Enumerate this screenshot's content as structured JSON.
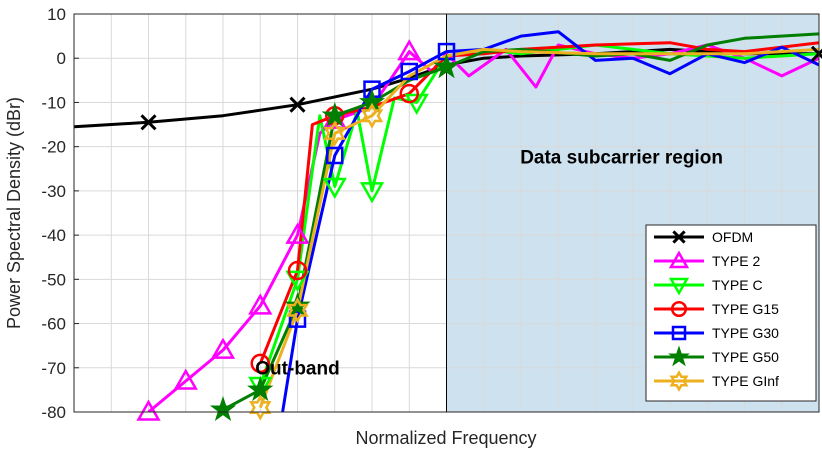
{
  "chart_data": {
    "type": "line",
    "title": "",
    "xlabel": "Normalized Frequency",
    "ylabel": "Power Spectral Density (dBr)",
    "xlim": [
      0,
      10
    ],
    "ylim": [
      -80,
      10
    ],
    "y_ticks": [
      10,
      0,
      -10,
      -20,
      -30,
      -40,
      -50,
      -60,
      -70,
      -80
    ],
    "grid": true,
    "legend_position": "lower-right",
    "region": {
      "x_start": 5,
      "x_end": 10,
      "color": "#cde1ee",
      "label": "Data subcarrier region"
    },
    "annotations": [
      {
        "text": "Out-band",
        "x": 3.0,
        "y": -71.5
      }
    ],
    "series": [
      {
        "name": "OFDM",
        "color": "#000000",
        "marker": "x",
        "x": [
          0,
          1,
          2,
          3,
          4,
          4.5,
          5,
          5.5,
          6,
          7,
          8,
          9,
          10
        ],
        "y": [
          -15.5,
          -14.5,
          -13,
          -10.5,
          -7,
          -4.5,
          -1.5,
          0,
          0.5,
          1,
          2,
          1,
          1
        ],
        "marker_x": [
          1,
          3,
          10
        ],
        "marker_y": [
          -14.5,
          -10.5,
          1
        ]
      },
      {
        "name": "TYPE 2",
        "color": "#ff00ff",
        "marker": "triangle-up",
        "x": [
          1,
          1.5,
          2,
          2.5,
          3,
          3.3,
          3.5,
          4,
          4.5,
          4.8,
          5,
          5.3,
          5.8,
          6.2,
          6.5,
          7,
          7.5,
          8,
          8.5,
          9,
          9.5,
          10
        ],
        "y": [
          -80,
          -73,
          -66,
          -56,
          -40,
          -17,
          -14,
          -11,
          1.5,
          -3,
          1,
          -4,
          2,
          -6.5,
          3,
          1,
          0,
          1,
          3,
          0,
          -4,
          0
        ],
        "marker_x": [
          1,
          1.5,
          2,
          2.5,
          3,
          3.5,
          4.5
        ],
        "marker_y": [
          -80,
          -73,
          -66,
          -56,
          -40,
          -14,
          1.5
        ]
      },
      {
        "name": "TYPE C",
        "color": "#00ff00",
        "marker": "triangle-down",
        "x": [
          2.5,
          3,
          3.3,
          3.5,
          3.8,
          4,
          4.3,
          4.6,
          5,
          5.5,
          6,
          7,
          8,
          9,
          10
        ],
        "y": [
          -74,
          -50,
          -13,
          -29,
          -12,
          -30,
          -9,
          -10,
          0.5,
          2,
          1,
          3,
          1,
          0,
          1
        ],
        "marker_x": [
          2.5,
          3,
          3.5,
          4,
          4.6
        ],
        "marker_y": [
          -74,
          -50,
          -29,
          -30,
          -10
        ]
      },
      {
        "name": "TYPE G15",
        "color": "#ff0000",
        "marker": "circle",
        "x": [
          2.5,
          3,
          3.2,
          3.5,
          4,
          4.5,
          5,
          5.5,
          6,
          7,
          8,
          8.5,
          9,
          10
        ],
        "y": [
          -69,
          -48,
          -15,
          -13,
          -11,
          -8,
          0.5,
          1,
          2,
          3,
          3.5,
          2,
          1.5,
          3.5
        ],
        "marker_x": [
          2.5,
          3,
          3.5,
          4.5
        ],
        "marker_y": [
          -69,
          -48,
          -13,
          -8
        ]
      },
      {
        "name": "TYPE G30",
        "color": "#0000ff",
        "marker": "square",
        "x": [
          2.8,
          3,
          3.5,
          4,
          4.5,
          5,
          5.5,
          6,
          6.5,
          7,
          7.5,
          8,
          8.5,
          9,
          9.5,
          10
        ],
        "y": [
          -80,
          -59,
          -22,
          -7,
          -3,
          1.5,
          2,
          5,
          6,
          -0.5,
          0,
          -3.5,
          1,
          -1,
          2.5,
          -1.5
        ],
        "marker_x": [
          3,
          3.5,
          4,
          4.5,
          5
        ],
        "marker_y": [
          -59,
          -22,
          -7,
          -3,
          1.5
        ]
      },
      {
        "name": "TYPE G50",
        "color": "#007f00",
        "marker": "star",
        "x": [
          2,
          2.5,
          3,
          3.5,
          4,
          4.5,
          5,
          5.5,
          6,
          7,
          7.5,
          8,
          8.5,
          9,
          10
        ],
        "y": [
          -79.5,
          -75,
          -56,
          -13,
          -10,
          -5,
          -2,
          1.5,
          2,
          0.5,
          1,
          -0.5,
          3,
          4.5,
          5.5
        ],
        "marker_x": [
          2,
          2.5,
          3,
          3.5,
          4,
          5
        ],
        "marker_y": [
          -79.5,
          -75,
          -56,
          -13,
          -10,
          -2
        ]
      },
      {
        "name": "TYPE GInf",
        "color": "#edb120",
        "marker": "hexagram",
        "x": [
          2.5,
          3,
          3.5,
          4,
          4.5,
          5,
          5.5,
          6,
          7,
          8,
          9,
          10
        ],
        "y": [
          -79,
          -57,
          -17,
          -13,
          -4,
          0.5,
          2,
          1.5,
          1,
          1,
          1,
          2
        ],
        "marker_x": [
          2.5,
          3,
          3.5,
          4
        ],
        "marker_y": [
          -79,
          -57,
          -17,
          -13
        ]
      }
    ]
  }
}
